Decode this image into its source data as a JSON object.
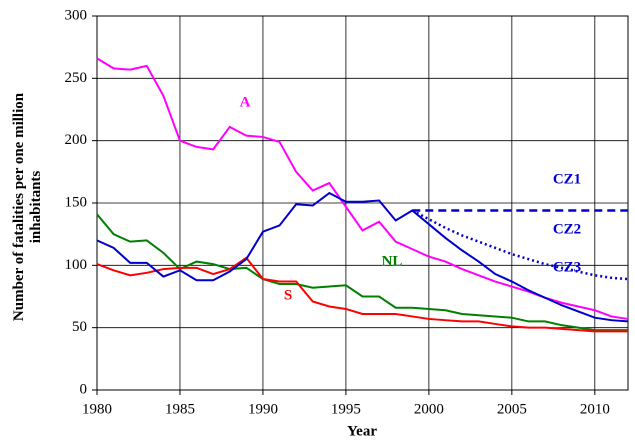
{
  "chart_data": {
    "type": "line",
    "x_label": "Year",
    "y_label": "Number of fatalities per one million inhabitants",
    "x": [
      1980,
      1981,
      1982,
      1983,
      1984,
      1985,
      1986,
      1987,
      1988,
      1989,
      1990,
      1991,
      1992,
      1993,
      1994,
      1995,
      1996,
      1997,
      1998,
      1999,
      2000,
      2001,
      2002,
      2003,
      2004,
      2005,
      2006,
      2007,
      2008,
      2009,
      2010,
      2011,
      2012
    ],
    "xlim": [
      1980,
      2012
    ],
    "xticks": [
      1980,
      1985,
      1990,
      1995,
      2000,
      2005,
      2010
    ],
    "ylim": [
      0,
      300
    ],
    "yticks": [
      0,
      50,
      100,
      150,
      200,
      250,
      300
    ],
    "grid": true,
    "series": [
      {
        "name": "A",
        "color": "#ff00ff",
        "line_style": "solid",
        "values": [
          266,
          258,
          257,
          260,
          236,
          200,
          195,
          193,
          211,
          204,
          203,
          199,
          175,
          160,
          166,
          147,
          128,
          135,
          119,
          113,
          107,
          103,
          97,
          92,
          87,
          83,
          79,
          74,
          70,
          67,
          64,
          59,
          57
        ]
      },
      {
        "name": "NL",
        "color": "#008000",
        "line_style": "solid",
        "values": [
          141,
          125,
          119,
          120,
          110,
          97,
          103,
          101,
          97,
          98,
          89,
          85,
          85,
          82,
          83,
          84,
          75,
          75,
          66,
          66,
          65,
          64,
          61,
          60,
          59,
          58,
          55,
          55,
          52,
          50,
          48,
          48,
          48
        ]
      },
      {
        "name": "S",
        "color": "#ff0000",
        "line_style": "solid",
        "values": [
          101,
          96,
          92,
          94,
          97,
          98,
          98,
          93,
          97,
          106,
          89,
          87,
          87,
          71,
          67,
          65,
          61,
          61,
          61,
          59,
          57,
          56,
          55,
          55,
          53,
          51,
          50,
          50,
          49,
          48,
          47,
          47,
          47
        ]
      },
      {
        "name": "CZ1",
        "color": "#0000cc",
        "line_style": "dashed",
        "values": [
          null,
          null,
          null,
          null,
          null,
          null,
          null,
          null,
          null,
          null,
          null,
          null,
          null,
          null,
          null,
          null,
          null,
          null,
          null,
          144,
          144,
          144,
          144,
          144,
          144,
          144,
          144,
          144,
          144,
          144,
          144,
          144,
          144
        ]
      },
      {
        "name": "CZ2",
        "color": "#0000cc",
        "line_style": "dotted",
        "values": [
          null,
          null,
          null,
          null,
          null,
          null,
          null,
          null,
          null,
          null,
          null,
          null,
          null,
          null,
          null,
          null,
          null,
          null,
          null,
          144,
          137,
          130,
          124,
          119,
          114,
          109,
          105,
          101,
          98,
          95,
          92,
          90,
          89
        ]
      },
      {
        "name": "CZ3",
        "color": "#0000cc",
        "line_style": "solid",
        "values": [
          120,
          114,
          102,
          102,
          91,
          96,
          88,
          88,
          95,
          105,
          127,
          132,
          149,
          148,
          158,
          151,
          151,
          152,
          136,
          144,
          133,
          122,
          112,
          103,
          93,
          87,
          80,
          74,
          68,
          63,
          58,
          56,
          55
        ]
      }
    ]
  }
}
